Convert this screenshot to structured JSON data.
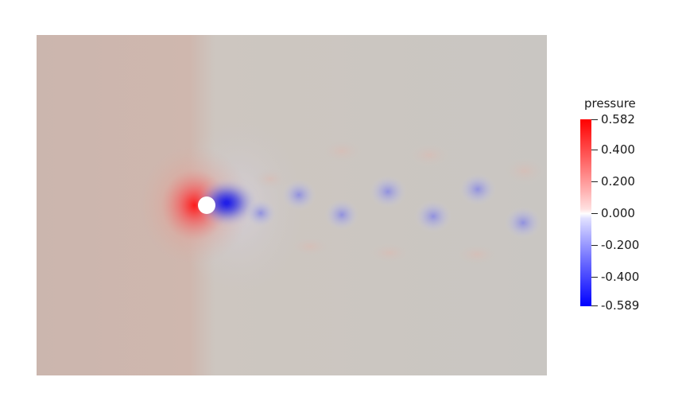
{
  "field": {
    "variable": "pressure",
    "colormap": [
      "#0000ff",
      "#ffffff",
      "#ff0000"
    ],
    "range_max": "0.582",
    "range_min": "-0.589",
    "ticks": [
      "0.400",
      "0.200",
      "0.000",
      "-0.200",
      "-0.400"
    ]
  }
}
